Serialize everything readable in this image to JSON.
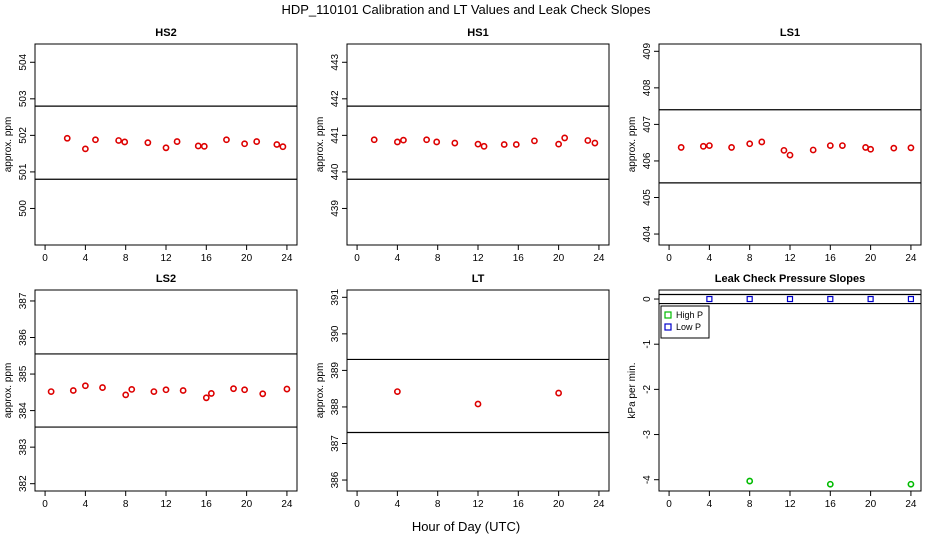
{
  "title": "HDP_110101  Calibration and LT Values and Leak Check Slopes",
  "xlabel": "Hour of Day (UTC)",
  "colors": {
    "calibration_points": "#dd0000",
    "high_p": "#00bb00",
    "low_p": "#0000cc",
    "axis": "#000000"
  },
  "chart_data": [
    {
      "type": "scatter",
      "title": "HS2",
      "ylabel": "approx. ppm",
      "xlim": [
        -1,
        25
      ],
      "ylim": [
        499,
        504.5
      ],
      "xticks": [
        0,
        4,
        8,
        12,
        16,
        20,
        24
      ],
      "yticks": [
        500,
        501,
        502,
        503,
        504
      ],
      "hlines": [
        502.8,
        500.8
      ],
      "series": [
        {
          "color": "red",
          "marker": "circle",
          "x": [
            2.2,
            4.0,
            5.0,
            7.3,
            7.9,
            10.2,
            12.0,
            13.1,
            15.2,
            15.8,
            18.0,
            19.8,
            21.0,
            23.0,
            23.6
          ],
          "y": [
            501.92,
            501.63,
            501.88,
            501.86,
            501.82,
            501.8,
            501.66,
            501.83,
            501.71,
            501.7,
            501.88,
            501.77,
            501.83,
            501.75,
            501.69
          ]
        }
      ]
    },
    {
      "type": "scatter",
      "title": "HS1",
      "ylabel": "approx. ppm",
      "xlim": [
        -1,
        25
      ],
      "ylim": [
        438,
        443.5
      ],
      "xticks": [
        0,
        4,
        8,
        12,
        16,
        20,
        24
      ],
      "yticks": [
        439,
        440,
        441,
        442,
        443
      ],
      "hlines": [
        441.8,
        439.8
      ],
      "series": [
        {
          "color": "red",
          "marker": "circle",
          "x": [
            1.7,
            4.0,
            4.6,
            6.9,
            7.9,
            9.7,
            12.0,
            12.6,
            14.6,
            15.8,
            17.6,
            20.0,
            20.6,
            22.9,
            23.6
          ],
          "y": [
            440.88,
            440.82,
            440.87,
            440.88,
            440.82,
            440.79,
            440.76,
            440.7,
            440.75,
            440.75,
            440.85,
            440.76,
            440.93,
            440.86,
            440.79
          ]
        }
      ]
    },
    {
      "type": "scatter",
      "title": "LS1",
      "ylabel": "approx. ppm",
      "xlim": [
        -1,
        25
      ],
      "ylim": [
        403.7,
        409.2
      ],
      "xticks": [
        0,
        4,
        8,
        12,
        16,
        20,
        24
      ],
      "yticks": [
        404,
        405,
        406,
        407,
        408,
        409
      ],
      "hlines": [
        407.4,
        405.4
      ],
      "series": [
        {
          "color": "red",
          "marker": "circle",
          "x": [
            1.2,
            3.4,
            4.0,
            6.2,
            8.0,
            9.2,
            11.4,
            12.0,
            14.3,
            16.0,
            17.2,
            19.5,
            20.0,
            22.3,
            24.0
          ],
          "y": [
            406.37,
            406.4,
            406.42,
            406.37,
            406.47,
            406.52,
            406.29,
            406.16,
            406.3,
            406.42,
            406.42,
            406.37,
            406.32,
            406.35,
            406.36
          ]
        }
      ]
    },
    {
      "type": "scatter",
      "title": "LS2",
      "ylabel": "approx. ppm",
      "xlim": [
        -1,
        25
      ],
      "ylim": [
        381.8,
        387.3
      ],
      "xticks": [
        0,
        4,
        8,
        12,
        16,
        20,
        24
      ],
      "yticks": [
        382,
        383,
        384,
        385,
        386,
        387
      ],
      "hlines": [
        385.55,
        383.55
      ],
      "series": [
        {
          "color": "red",
          "marker": "circle",
          "x": [
            0.6,
            2.8,
            4.0,
            5.7,
            8.0,
            8.6,
            10.8,
            12.0,
            13.7,
            16.0,
            16.5,
            18.7,
            19.8,
            21.6,
            24.0
          ],
          "y": [
            384.52,
            384.55,
            384.68,
            384.63,
            384.43,
            384.58,
            384.52,
            384.57,
            384.55,
            384.35,
            384.47,
            384.6,
            384.57,
            384.46,
            384.59
          ]
        }
      ]
    },
    {
      "type": "scatter",
      "title": "LT",
      "ylabel": "approx. ppm",
      "xlim": [
        -1,
        25
      ],
      "ylim": [
        385.7,
        391.2
      ],
      "xticks": [
        0,
        4,
        8,
        12,
        16,
        20,
        24
      ],
      "yticks": [
        386,
        387,
        388,
        389,
        390,
        391
      ],
      "hlines": [
        389.3,
        387.3
      ],
      "series": [
        {
          "color": "red",
          "marker": "circle",
          "x": [
            4.0,
            12.0,
            20.0
          ],
          "y": [
            388.42,
            388.08,
            388.38
          ]
        }
      ]
    },
    {
      "type": "scatter",
      "title": "Leak Check Pressure Slopes",
      "ylabel": "kPa per min.",
      "xlim": [
        -1,
        25
      ],
      "ylim": [
        -4.25,
        0.2
      ],
      "xticks": [
        0,
        4,
        8,
        12,
        16,
        20,
        24
      ],
      "yticks": [
        0,
        -1,
        -2,
        -3,
        -4
      ],
      "hlines": [
        0.1,
        -0.1
      ],
      "legend": "top-left",
      "series": [
        {
          "name": "High P",
          "color": "green",
          "marker": "circle",
          "x": [
            8,
            16,
            24
          ],
          "y": [
            -4.03,
            -4.1,
            -4.1
          ]
        },
        {
          "name": "Low P",
          "color": "blue",
          "marker": "square",
          "x": [
            4,
            8,
            12,
            16,
            20,
            24
          ],
          "y": [
            0.0,
            0.0,
            0.0,
            0.0,
            0.0,
            0.0
          ]
        }
      ]
    }
  ]
}
